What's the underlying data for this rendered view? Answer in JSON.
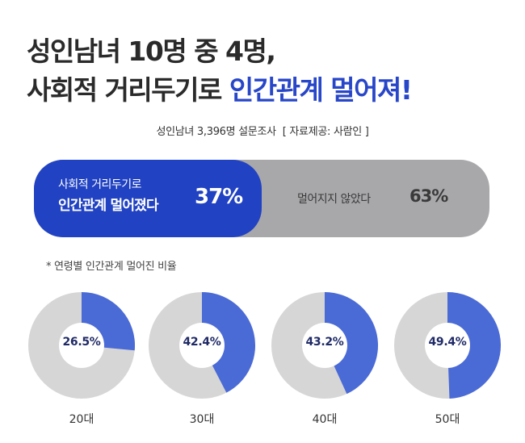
{
  "header": {
    "title_line1": "성인남녀 10명 중 4명,",
    "title_line2_prefix": "사회적 거리두기로 ",
    "title_line2_highlight": "인간관계 멀어져!"
  },
  "survey": {
    "description": "성인남녀 3,396명 설문조사",
    "source": "[ 자료제공: 사람인 ]"
  },
  "summary_bar": {
    "left_line1": "사회적 거리두기로",
    "left_line2": "인간관계 멀어졌다",
    "left_value": 37,
    "left_pct_text": "37%",
    "right_label": "멀어지지 않았다",
    "right_value": 63,
    "right_pct_text": "63%"
  },
  "note": "*  연령별 인간관계 멀어진 비율",
  "colors": {
    "accent": "#2142c2",
    "donut_fill": "#4a6ad6",
    "donut_rest": "#d6d6d6",
    "bar_rest": "#a8a8ab"
  },
  "chart_data": {
    "type": "pie",
    "categories": [
      "20대",
      "30대",
      "40대",
      "50대"
    ],
    "values": [
      26.5,
      42.4,
      43.2,
      49.4
    ],
    "labels": [
      "26.5%",
      "42.4%",
      "43.2%",
      "49.4%"
    ],
    "unit": "%"
  }
}
